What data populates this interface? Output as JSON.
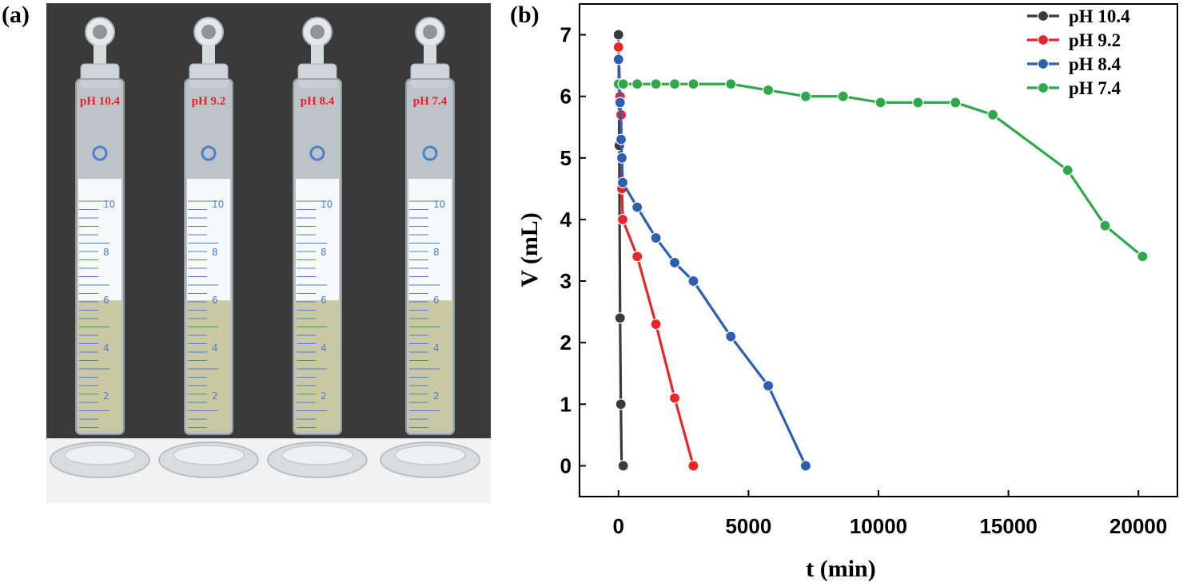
{
  "panel_a": {
    "label": "(a)",
    "cylinders": [
      {
        "ph_label": "pH 10.4",
        "marks": [
          "10",
          "8",
          "6",
          "4",
          "2"
        ],
        "liquid_fraction": 0.26
      },
      {
        "ph_label": "pH 9.2",
        "marks": [
          "10",
          "8",
          "6",
          "4",
          "2"
        ],
        "liquid_fraction": 0.26
      },
      {
        "ph_label": "pH 8.4",
        "marks": [
          "10",
          "8",
          "6",
          "4",
          "2"
        ],
        "liquid_fraction": 0.26
      },
      {
        "ph_label": "pH 7.4",
        "marks": [
          "10",
          "8",
          "6",
          "4",
          "2"
        ],
        "liquid_fraction": 0.26
      }
    ],
    "colors": {
      "label": "#e8202a",
      "graduation": "#4a7fd0",
      "backdrop": "#3a3a3a",
      "table": "#f2f2f2"
    }
  },
  "panel_b": {
    "label": "(b)"
  },
  "chart_data": {
    "type": "line",
    "xlabel": "t (min)",
    "ylabel": "V (mL)",
    "xlim": [
      -1500,
      21500
    ],
    "ylim": [
      -0.5,
      7.5
    ],
    "xticks": [
      0,
      5000,
      10000,
      15000,
      20000
    ],
    "yticks": [
      0,
      1,
      2,
      3,
      4,
      5,
      6,
      7
    ],
    "legend_position": "top-right",
    "grid": false,
    "series": [
      {
        "name": "pH 10.4",
        "color": "#3a3a3a",
        "x": [
          0,
          30,
          60,
          90,
          120,
          150,
          180
        ],
        "y": [
          7.0,
          5.2,
          2.4,
          1.0,
          0.0,
          0.0,
          0.0
        ]
      },
      {
        "name": "pH 9.2",
        "color": "#e8262a",
        "x": [
          0,
          60,
          100,
          130,
          160,
          720,
          1440,
          2160,
          2880
        ],
        "y": [
          6.8,
          6.0,
          5.7,
          4.5,
          4.0,
          3.4,
          2.3,
          1.1,
          0.0
        ]
      },
      {
        "name": "pH 8.4",
        "color": "#2c5fb0",
        "x": [
          0,
          60,
          100,
          130,
          160,
          720,
          1440,
          2160,
          2880,
          4320,
          5760,
          7200
        ],
        "y": [
          6.6,
          5.9,
          5.3,
          5.0,
          4.6,
          4.2,
          3.7,
          3.3,
          3.0,
          2.1,
          1.3,
          0.0
        ]
      },
      {
        "name": "pH 7.4",
        "color": "#2ea84a",
        "x": [
          0,
          180,
          720,
          1440,
          2160,
          2880,
          4320,
          5760,
          7200,
          8640,
          10080,
          11520,
          12960,
          14400,
          17280,
          18720,
          20160
        ],
        "y": [
          6.2,
          6.2,
          6.2,
          6.2,
          6.2,
          6.2,
          6.2,
          6.1,
          6.0,
          6.0,
          5.9,
          5.9,
          5.9,
          5.7,
          4.8,
          3.9,
          3.4
        ]
      }
    ]
  }
}
